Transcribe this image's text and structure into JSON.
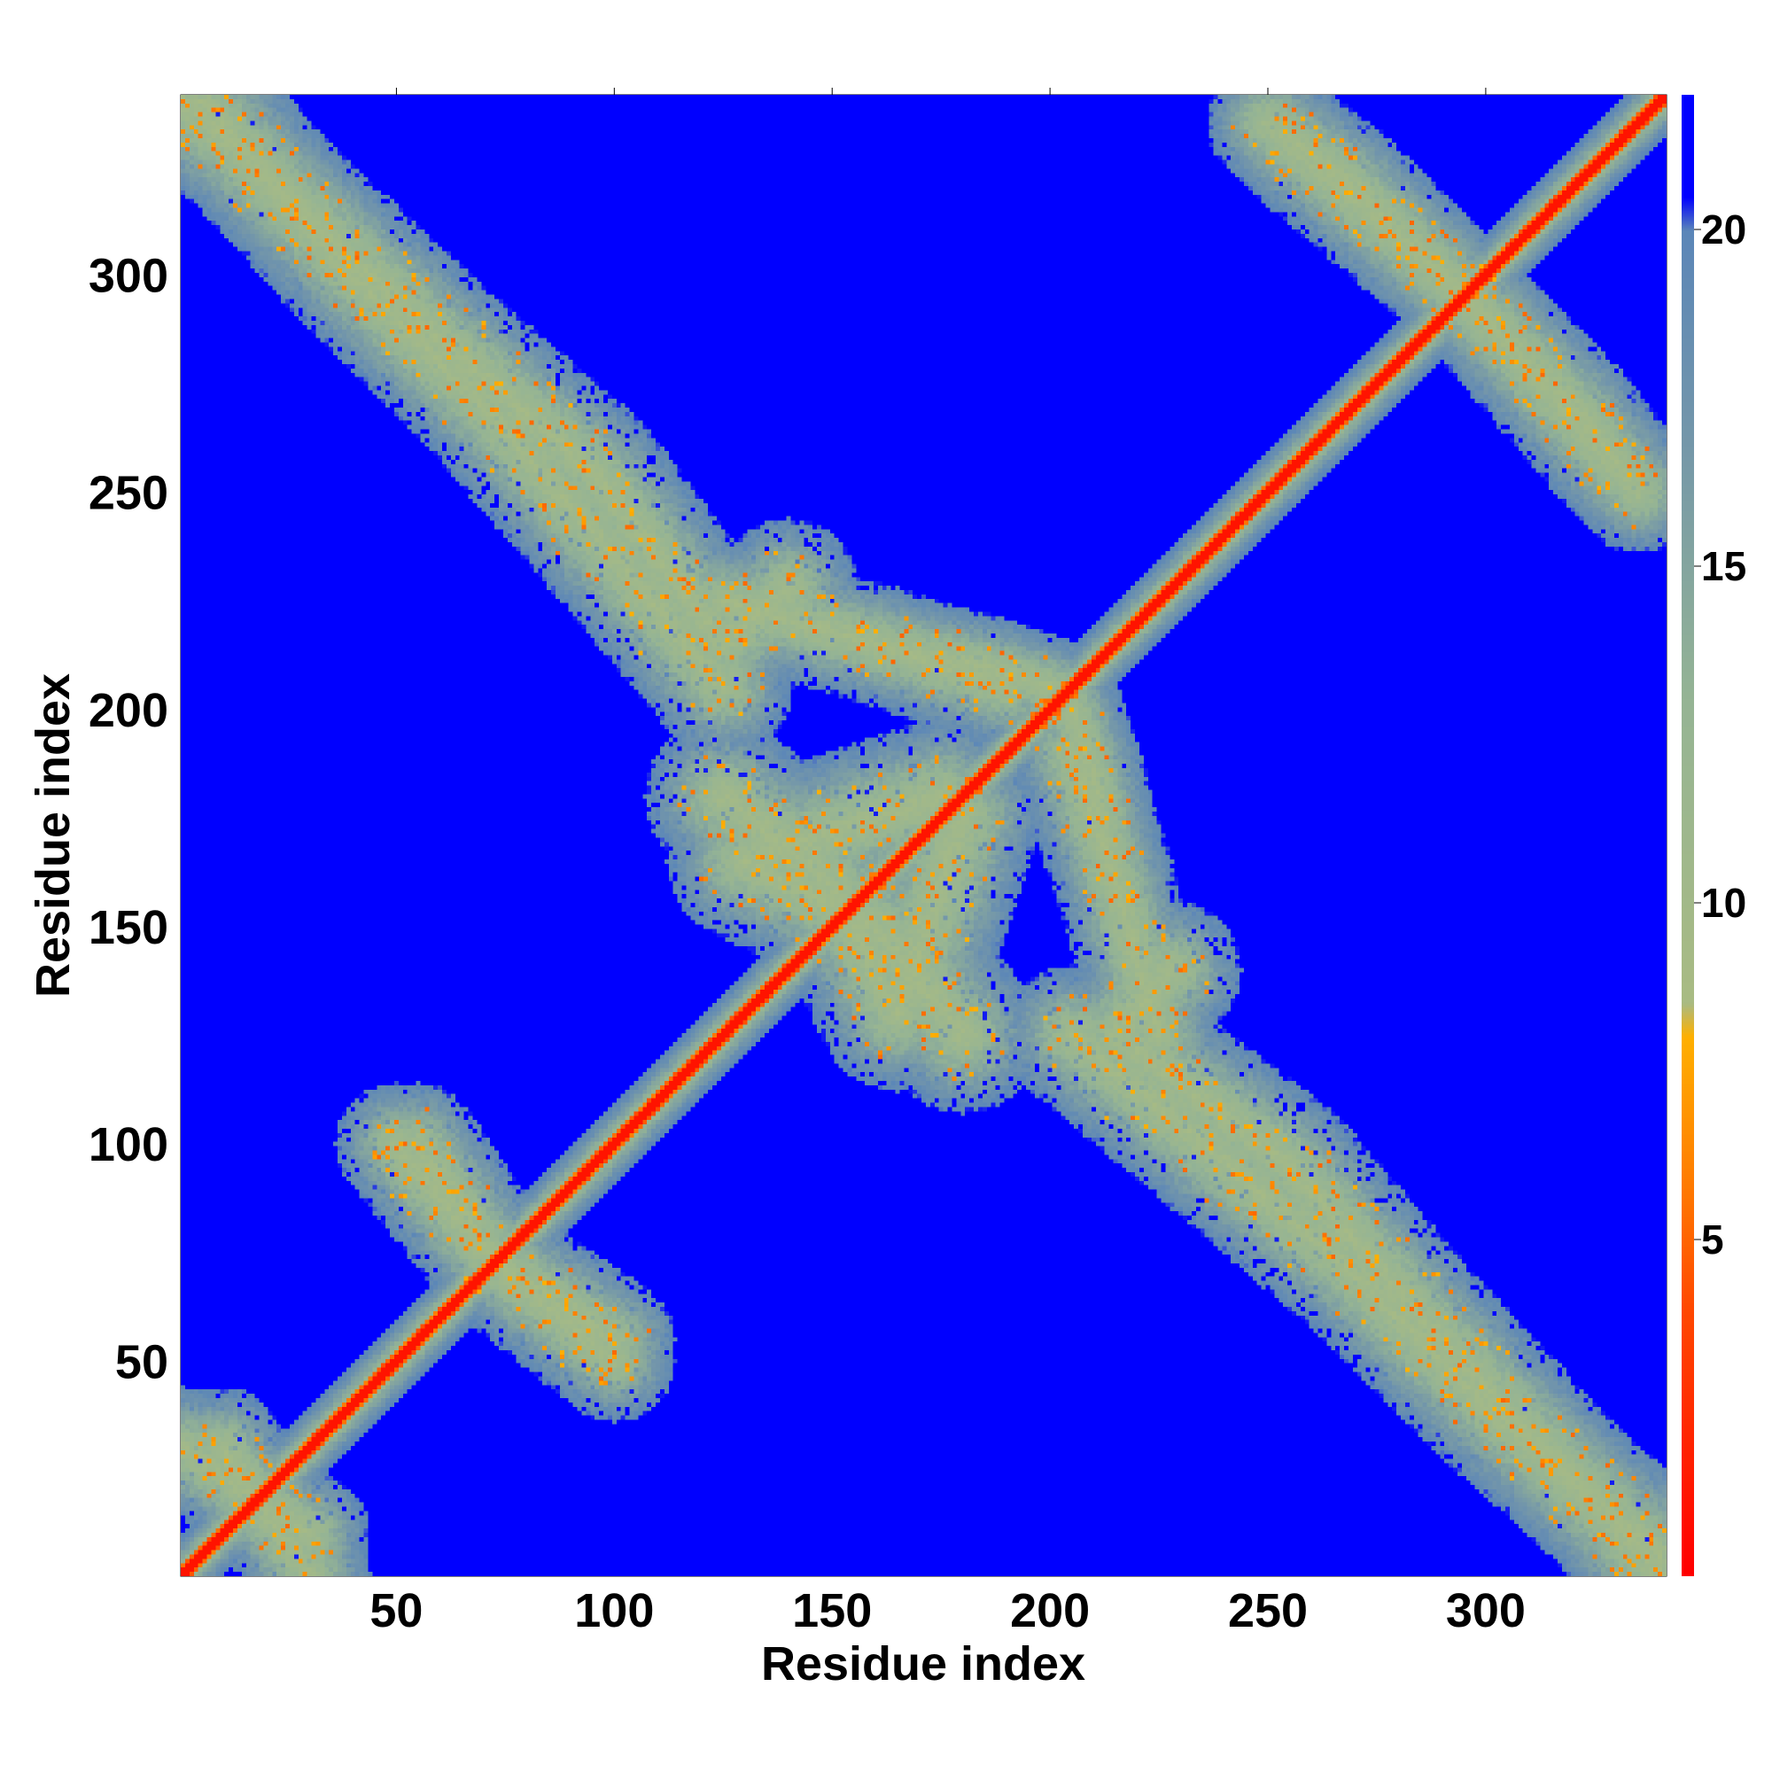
{
  "chart_data": {
    "type": "heatmap",
    "title": "",
    "xlabel": "Residue index",
    "ylabel": "Residue index",
    "n_residues": 341,
    "xlim": [
      1,
      341
    ],
    "ylim": [
      1,
      341
    ],
    "x_ticks": [
      50,
      100,
      150,
      200,
      250,
      300
    ],
    "y_ticks": [
      50,
      100,
      150,
      200,
      250,
      300
    ],
    "colorbar": {
      "ticks": [
        5,
        10,
        15,
        20
      ],
      "range": [
        0,
        22
      ],
      "stops": [
        {
          "v": 0,
          "color": "#ff0000"
        },
        {
          "v": 4,
          "color": "#ff4a00"
        },
        {
          "v": 6,
          "color": "#ff8000"
        },
        {
          "v": 8,
          "color": "#ffb000"
        },
        {
          "v": 8.5,
          "color": "#a9bb83"
        },
        {
          "v": 13,
          "color": "#95b494"
        },
        {
          "v": 17,
          "color": "#7396aa"
        },
        {
          "v": 20,
          "color": "#5b86b8"
        },
        {
          "v": 20.5,
          "color": "#0000ff"
        },
        {
          "v": 22,
          "color": "#0000ff"
        }
      ]
    },
    "background_value": 22,
    "diagonal_band_width": 9,
    "contact_bands": [
      {
        "name": "anti-diagonal upper-left",
        "points": [
          [
            1,
            340
          ],
          [
            60,
            285
          ],
          [
            95,
            255
          ],
          [
            125,
            215
          ],
          [
            140,
            228
          ]
        ],
        "width": 16
      },
      {
        "name": "anti-diagonal lower-right",
        "points": [
          [
            205,
            125
          ],
          [
            235,
            100
          ],
          [
            270,
            70
          ],
          [
            300,
            40
          ],
          [
            340,
            5
          ]
        ],
        "width": 16
      },
      {
        "name": "upper-right arm",
        "points": [
          [
            255,
            330
          ],
          [
            290,
            300
          ],
          [
            320,
            270
          ],
          [
            335,
            250
          ]
        ],
        "width": 14
      },
      {
        "name": "lower-left arm",
        "points": [
          [
            1,
            30
          ],
          [
            30,
            10
          ]
        ],
        "width": 14
      },
      {
        "name": "lower-left patch",
        "points": [
          [
            55,
            100
          ],
          [
            75,
            70
          ],
          [
            100,
            50
          ]
        ],
        "width": 14
      },
      {
        "name": "center cluster",
        "points": [
          [
            125,
            180
          ],
          [
            150,
            160
          ],
          [
            165,
            130
          ],
          [
            180,
            175
          ]
        ],
        "width": 18
      },
      {
        "name": "center right patch",
        "points": [
          [
            205,
            190
          ],
          [
            215,
            160
          ],
          [
            225,
            125
          ]
        ],
        "width": 14
      },
      {
        "name": "center upper patch",
        "points": [
          [
            160,
            215
          ],
          [
            185,
            210
          ],
          [
            200,
            205
          ]
        ],
        "width": 12
      }
    ]
  }
}
